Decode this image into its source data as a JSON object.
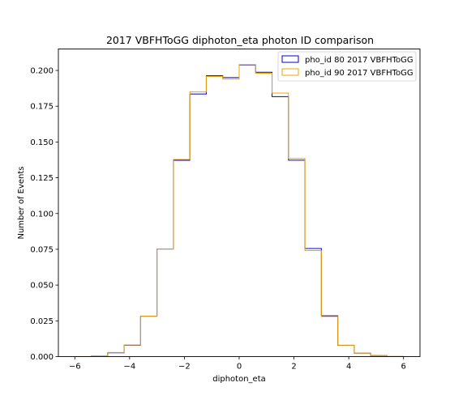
{
  "chart_data": {
    "type": "histogram-step",
    "title": "2017 VBFHToGG diphoton_eta photon ID comparison",
    "xlabel": "diphoton_eta",
    "ylabel": "Number of Events",
    "xlim": [
      -6.6,
      6.6
    ],
    "ylim": [
      0,
      0.215
    ],
    "xticks": [
      -6,
      -4,
      -2,
      0,
      2,
      4,
      6
    ],
    "xtick_labels": [
      "−6",
      "−4",
      "−2",
      "0",
      "2",
      "4",
      "6"
    ],
    "yticks": [
      0.0,
      0.025,
      0.05,
      0.075,
      0.1,
      0.125,
      0.15,
      0.175,
      0.2
    ],
    "ytick_labels": [
      "0.000",
      "0.025",
      "0.050",
      "0.075",
      "0.100",
      "0.125",
      "0.150",
      "0.175",
      "0.200"
    ],
    "grid": false,
    "legend_position": "top-right",
    "bin_edges": [
      -6.0,
      -5.4,
      -4.8,
      -4.2,
      -3.6,
      -3.0,
      -2.4,
      -1.8,
      -1.2,
      -0.6,
      0.0,
      0.6,
      1.2,
      1.8,
      2.4,
      3.0,
      3.6,
      4.2,
      4.8,
      5.4,
      6.0
    ],
    "series": [
      {
        "name": "pho_id 80 2017 VBFHToGG",
        "color": "#0000cc",
        "values": [
          0.0,
          0.0006,
          0.0027,
          0.0079,
          0.0282,
          0.0752,
          0.1372,
          0.1835,
          0.1963,
          0.195,
          0.2038,
          0.1987,
          0.1817,
          0.1373,
          0.0755,
          0.0285,
          0.0079,
          0.0024,
          0.0007,
          0.0001
        ]
      },
      {
        "name": "pho_id 90 2017 VBFHToGG",
        "color": "#f0a500",
        "values": [
          0.0,
          0.0006,
          0.0029,
          0.0081,
          0.0282,
          0.0752,
          0.1378,
          0.1851,
          0.1958,
          0.1939,
          0.2041,
          0.198,
          0.1842,
          0.1385,
          0.0741,
          0.028,
          0.008,
          0.0025,
          0.0008,
          0.0001
        ]
      }
    ]
  }
}
